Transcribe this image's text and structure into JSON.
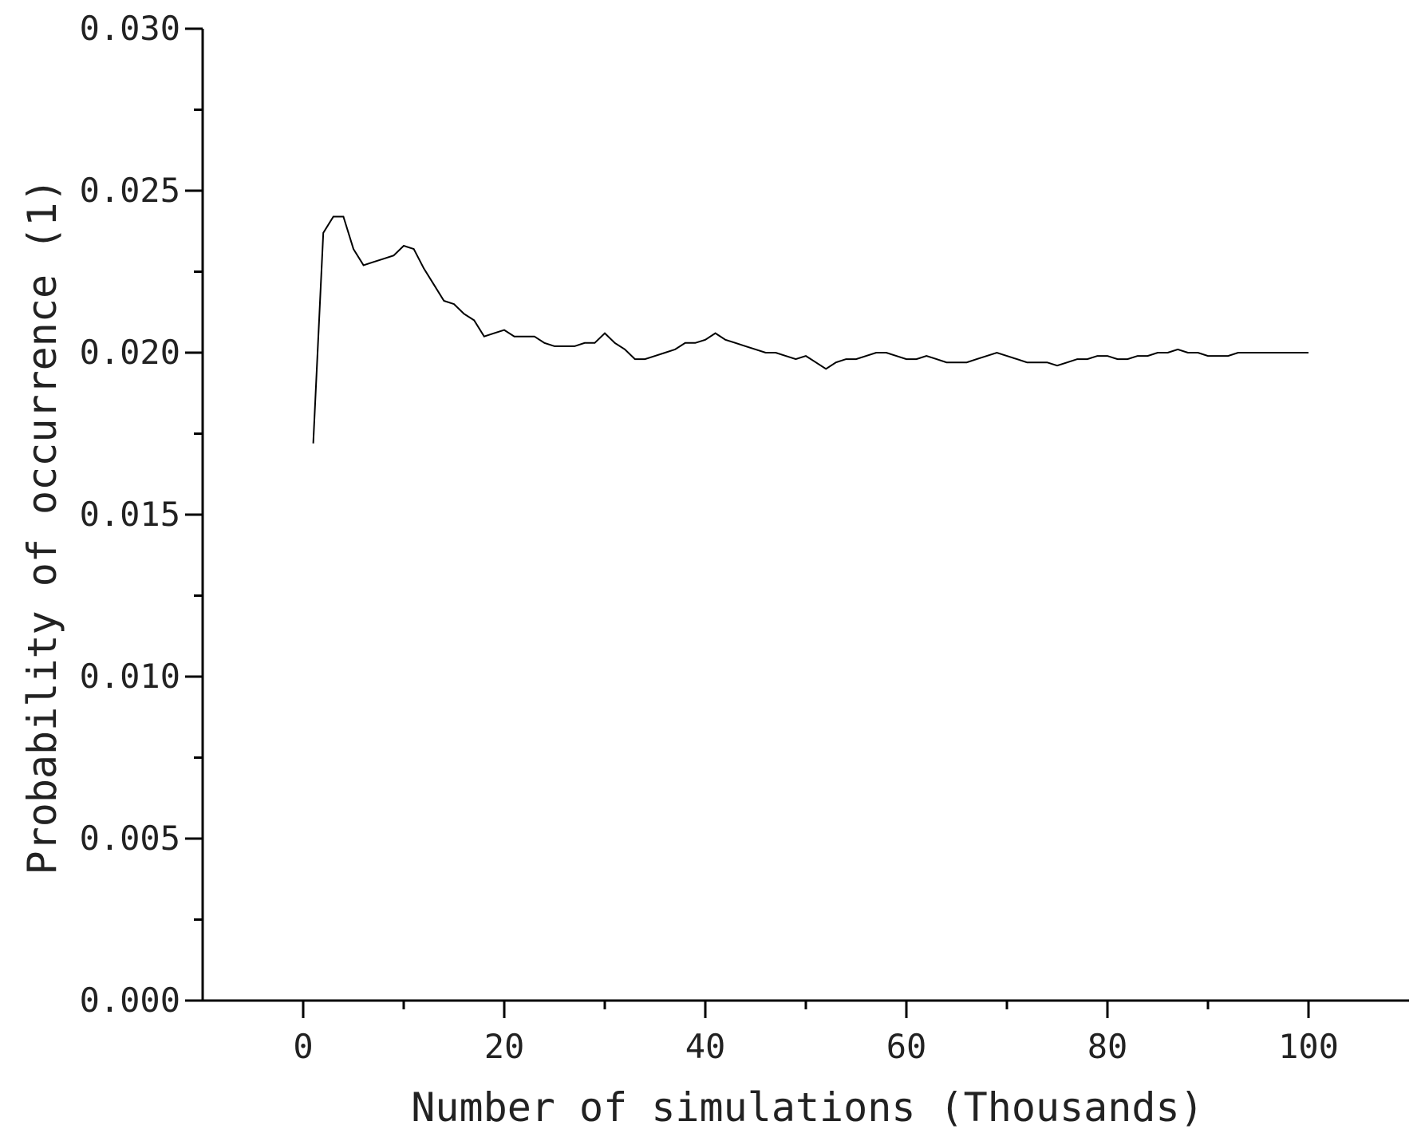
{
  "chart_data": {
    "type": "line",
    "title": "",
    "xlabel": "Number of simulations (Thousands)",
    "ylabel": "Probability of occurrence (1)",
    "xlim": [
      -10,
      110
    ],
    "ylim": [
      0.0,
      0.03
    ],
    "x_ticks": [
      0,
      20,
      40,
      60,
      80,
      100
    ],
    "x_tick_labels": [
      "0",
      "20",
      "40",
      "60",
      "80",
      "100"
    ],
    "x_minor_ticks": [
      10,
      30,
      50,
      70,
      90
    ],
    "y_ticks": [
      0.0,
      0.005,
      0.01,
      0.015,
      0.02,
      0.025,
      0.03
    ],
    "y_tick_labels": [
      "0.000",
      "0.005",
      "0.010",
      "0.015",
      "0.020",
      "0.025",
      "0.030"
    ],
    "y_minor_ticks": [
      0.0025,
      0.0075,
      0.0125,
      0.0175,
      0.0225,
      0.0275
    ],
    "grid": false,
    "line_color": "#000000",
    "series": [
      {
        "x": [
          1,
          2,
          3,
          4,
          5,
          6,
          7,
          8,
          9,
          10,
          11,
          12,
          13,
          14,
          15,
          16,
          17,
          18,
          19,
          20,
          21,
          22,
          23,
          24,
          25,
          26,
          27,
          28,
          29,
          30,
          31,
          32,
          33,
          34,
          35,
          36,
          37,
          38,
          39,
          40,
          41,
          42,
          43,
          44,
          45,
          46,
          47,
          48,
          49,
          50,
          51,
          52,
          53,
          54,
          55,
          56,
          57,
          58,
          59,
          60,
          61,
          62,
          63,
          64,
          65,
          66,
          67,
          68,
          69,
          70,
          71,
          72,
          73,
          74,
          75,
          76,
          77,
          78,
          79,
          80,
          81,
          82,
          83,
          84,
          85,
          86,
          87,
          88,
          89,
          90,
          91,
          92,
          93,
          94,
          95,
          96,
          97,
          98,
          99,
          100
        ],
        "values": [
          0.0172,
          0.0237,
          0.0242,
          0.0242,
          0.0232,
          0.0227,
          0.0228,
          0.0229,
          0.023,
          0.0233,
          0.0232,
          0.0226,
          0.0221,
          0.0216,
          0.0215,
          0.0212,
          0.021,
          0.0205,
          0.0206,
          0.0207,
          0.0205,
          0.0205,
          0.0205,
          0.0203,
          0.0202,
          0.0202,
          0.0202,
          0.0203,
          0.0203,
          0.0206,
          0.0203,
          0.0201,
          0.0198,
          0.0198,
          0.0199,
          0.02,
          0.0201,
          0.0203,
          0.0203,
          0.0204,
          0.0206,
          0.0204,
          0.0203,
          0.0202,
          0.0201,
          0.02,
          0.02,
          0.0199,
          0.0198,
          0.0199,
          0.0197,
          0.0195,
          0.0197,
          0.0198,
          0.0198,
          0.0199,
          0.02,
          0.02,
          0.0199,
          0.0198,
          0.0198,
          0.0199,
          0.0198,
          0.0197,
          0.0197,
          0.0197,
          0.0198,
          0.0199,
          0.02,
          0.0199,
          0.0198,
          0.0197,
          0.0197,
          0.0197,
          0.0196,
          0.0197,
          0.0198,
          0.0198,
          0.0199,
          0.0199,
          0.0198,
          0.0198,
          0.0199,
          0.0199,
          0.02,
          0.02,
          0.0201,
          0.02,
          0.02,
          0.0199,
          0.0199,
          0.0199,
          0.02,
          0.02,
          0.02,
          0.02,
          0.02,
          0.02,
          0.02,
          0.02
        ]
      }
    ]
  }
}
